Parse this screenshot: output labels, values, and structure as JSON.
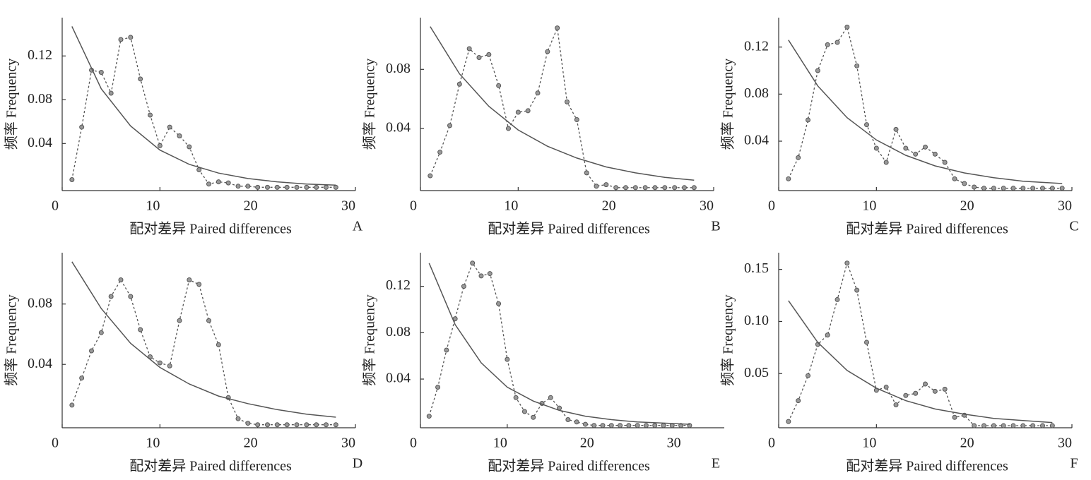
{
  "chart_data": [
    {
      "type": "line",
      "panel_label": "A",
      "x_label": "配对差异  Paired differences",
      "y_label": "频率  Frequency",
      "xlim": [
        0,
        30
      ],
      "xticks": [
        0,
        10,
        20,
        30
      ],
      "ylim": [
        -0.003,
        0.155
      ],
      "yticks": [
        0.04,
        0.08,
        0.12
      ],
      "x": [
        1,
        2,
        3,
        4,
        5,
        6,
        7,
        8,
        9,
        10,
        11,
        12,
        13,
        14,
        15,
        16,
        17,
        18,
        19,
        20,
        21,
        22,
        23,
        24,
        25,
        26,
        27,
        28
      ],
      "series": [
        {
          "color": "#555555",
          "line_style": "dashed",
          "markers": true,
          "values": [
            0.007,
            0.055,
            0.107,
            0.105,
            0.086,
            0.135,
            0.137,
            0.099,
            0.066,
            0.038,
            0.055,
            0.047,
            0.037,
            0.016,
            0.003,
            0.005,
            0.004,
            0.001,
            0.001,
            0,
            0,
            0,
            0,
            0,
            0,
            0,
            0,
            0
          ]
        },
        {
          "color": "#555555",
          "line_style": "solid",
          "markers": false,
          "x": [
            1,
            4,
            7,
            10,
            13,
            16,
            19,
            22,
            25,
            28
          ],
          "values": [
            0.147,
            0.09,
            0.056,
            0.034,
            0.021,
            0.013,
            0.008,
            0.005,
            0.003,
            0.002
          ]
        }
      ]
    },
    {
      "type": "line",
      "panel_label": "B",
      "x_label": "配对差异  Paired differences",
      "y_label": "频率  Frequency",
      "xlim": [
        0,
        30
      ],
      "xticks": [
        0,
        10,
        20,
        30
      ],
      "ylim": [
        -0.002,
        0.115
      ],
      "yticks": [
        0.04,
        0.08
      ],
      "x": [
        1,
        2,
        3,
        4,
        5,
        6,
        7,
        8,
        9,
        10,
        11,
        12,
        13,
        14,
        15,
        16,
        17,
        18,
        19,
        20,
        21,
        22,
        23,
        24,
        25,
        26,
        27,
        28
      ],
      "series": [
        {
          "color": "#555555",
          "line_style": "dashed",
          "markers": true,
          "values": [
            0.008,
            0.024,
            0.042,
            0.07,
            0.094,
            0.088,
            0.09,
            0.069,
            0.04,
            0.051,
            0.052,
            0.064,
            0.092,
            0.108,
            0.058,
            0.046,
            0.01,
            0.001,
            0.002,
            0,
            0,
            0,
            0,
            0,
            0,
            0,
            0,
            0
          ]
        },
        {
          "color": "#555555",
          "line_style": "solid",
          "markers": false,
          "x": [
            1,
            4,
            7,
            10,
            13,
            16,
            19,
            22,
            25,
            28
          ],
          "values": [
            0.109,
            0.077,
            0.055,
            0.039,
            0.028,
            0.02,
            0.014,
            0.01,
            0.007,
            0.005
          ]
        }
      ]
    },
    {
      "type": "line",
      "panel_label": "C",
      "x_label": "配对差异  Paired differences",
      "y_label": "频率  Frequency",
      "xlim": [
        0,
        30
      ],
      "xticks": [
        0,
        10,
        20,
        30
      ],
      "ylim": [
        -0.002,
        0.145
      ],
      "yticks": [
        0.04,
        0.08,
        0.12
      ],
      "x": [
        1,
        2,
        3,
        4,
        5,
        6,
        7,
        8,
        9,
        10,
        11,
        12,
        13,
        14,
        15,
        16,
        17,
        18,
        19,
        20,
        21,
        22,
        23,
        24,
        25,
        26,
        27,
        28,
        29
      ],
      "series": [
        {
          "color": "#555555",
          "line_style": "dashed",
          "markers": true,
          "values": [
            0.008,
            0.026,
            0.058,
            0.1,
            0.122,
            0.124,
            0.137,
            0.104,
            0.054,
            0.034,
            0.022,
            0.05,
            0.034,
            0.029,
            0.035,
            0.029,
            0.022,
            0.008,
            0.004,
            0.001,
            0,
            0,
            0,
            0,
            0,
            0,
            0,
            0,
            0
          ]
        },
        {
          "color": "#555555",
          "line_style": "solid",
          "markers": false,
          "x": [
            1,
            4,
            7,
            10,
            13,
            16,
            19,
            22,
            25,
            29
          ],
          "values": [
            0.126,
            0.087,
            0.06,
            0.041,
            0.028,
            0.019,
            0.013,
            0.009,
            0.006,
            0.004
          ]
        }
      ]
    },
    {
      "type": "line",
      "panel_label": "D",
      "x_label": "配对差异  Paired differences",
      "y_label": "频率  Frequency",
      "xlim": [
        0,
        30
      ],
      "xticks": [
        0,
        10,
        20,
        30
      ],
      "ylim": [
        -0.002,
        0.114
      ],
      "yticks": [
        0.04,
        0.08
      ],
      "x": [
        1,
        2,
        3,
        4,
        5,
        6,
        7,
        8,
        9,
        10,
        11,
        12,
        13,
        14,
        15,
        16,
        17,
        18,
        19,
        20,
        21,
        22,
        23,
        24,
        25,
        26,
        27,
        28
      ],
      "series": [
        {
          "color": "#555555",
          "line_style": "dashed",
          "markers": true,
          "values": [
            0.013,
            0.031,
            0.049,
            0.061,
            0.085,
            0.096,
            0.085,
            0.063,
            0.045,
            0.041,
            0.039,
            0.069,
            0.096,
            0.093,
            0.069,
            0.053,
            0.018,
            0.004,
            0.001,
            0,
            0,
            0,
            0,
            0,
            0,
            0,
            0,
            0
          ]
        },
        {
          "color": "#555555",
          "line_style": "solid",
          "markers": false,
          "x": [
            1,
            4,
            7,
            10,
            13,
            16,
            19,
            22,
            25,
            28
          ],
          "values": [
            0.108,
            0.077,
            0.054,
            0.038,
            0.027,
            0.019,
            0.014,
            0.01,
            0.007,
            0.005
          ]
        }
      ]
    },
    {
      "type": "line",
      "panel_label": "E",
      "x_label": "配对差异  Paired differences",
      "y_label": "频率  Frequency",
      "xlim": [
        0,
        35
      ],
      "xticks": [
        0,
        10,
        20,
        30
      ],
      "ylim": [
        -0.002,
        0.149
      ],
      "yticks": [
        0.04,
        0.08,
        0.12
      ],
      "x": [
        1,
        2,
        3,
        4,
        5,
        6,
        7,
        8,
        9,
        10,
        11,
        12,
        13,
        14,
        15,
        16,
        17,
        18,
        19,
        20,
        21,
        22,
        23,
        24,
        25,
        26,
        27,
        28,
        29,
        30,
        31
      ],
      "series": [
        {
          "color": "#555555",
          "line_style": "dashed",
          "markers": true,
          "values": [
            0.008,
            0.033,
            0.065,
            0.092,
            0.12,
            0.14,
            0.129,
            0.131,
            0.105,
            0.057,
            0.024,
            0.012,
            0.007,
            0.019,
            0.024,
            0.015,
            0.005,
            0.003,
            0.001,
            0,
            0,
            0,
            0,
            0,
            0,
            0,
            0,
            0,
            0,
            0,
            0
          ]
        },
        {
          "color": "#555555",
          "line_style": "solid",
          "markers": false,
          "x": [
            1,
            4,
            7,
            10,
            13,
            16,
            19,
            22,
            25,
            28,
            31
          ],
          "values": [
            0.14,
            0.087,
            0.054,
            0.033,
            0.021,
            0.013,
            0.008,
            0.005,
            0.003,
            0.002,
            0.001
          ]
        }
      ]
    },
    {
      "type": "line",
      "panel_label": "F",
      "x_label": "配对差异  Paired differences",
      "y_label": "频率  Frequency",
      "xlim": [
        0,
        30
      ],
      "xticks": [
        0,
        10,
        20,
        30
      ],
      "ylim": [
        -0.002,
        0.166
      ],
      "yticks": [
        0.05,
        {
          "value": 0.1,
          "label": "0.10"
        },
        0.15
      ],
      "x": [
        1,
        2,
        3,
        4,
        5,
        6,
        7,
        8,
        9,
        10,
        11,
        12,
        13,
        14,
        15,
        16,
        17,
        18,
        19,
        20,
        21,
        22,
        23,
        24,
        25,
        26,
        27,
        28
      ],
      "series": [
        {
          "color": "#555555",
          "line_style": "dashed",
          "markers": true,
          "values": [
            0.004,
            0.024,
            0.048,
            0.078,
            0.087,
            0.121,
            0.156,
            0.13,
            0.08,
            0.034,
            0.037,
            0.02,
            0.029,
            0.031,
            0.04,
            0.033,
            0.035,
            0.008,
            0.01,
            0,
            0,
            0,
            0,
            0,
            0,
            0,
            0,
            0
          ]
        },
        {
          "color": "#555555",
          "line_style": "solid",
          "markers": false,
          "x": [
            1,
            4,
            7,
            10,
            13,
            16,
            19,
            22,
            25,
            28
          ],
          "values": [
            0.12,
            0.08,
            0.053,
            0.036,
            0.024,
            0.016,
            0.011,
            0.007,
            0.005,
            0.003
          ]
        }
      ]
    }
  ]
}
